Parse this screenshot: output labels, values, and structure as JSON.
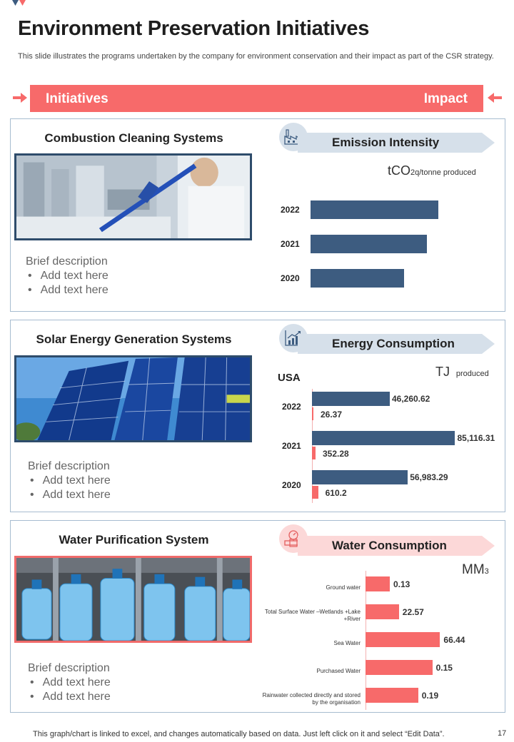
{
  "header": {
    "title": "Environment Preservation Initiatives",
    "subtitle": "This slide illustrates the programs undertaken by the company for  environment conservation and their impact as part of the CSR strategy."
  },
  "banner": {
    "left_label": "Initiatives",
    "right_label": "Impact"
  },
  "colors": {
    "accent": "#f76a6a",
    "navy": "#3d5c80",
    "border": "#a7bcd0",
    "tag_blue": "#d6e0ea",
    "tag_pink": "#fcd8d8"
  },
  "panels": [
    {
      "heading": "Combustion Cleaning Systems",
      "description_title": "Brief description",
      "bullets": [
        "Add text here",
        "Add text here"
      ],
      "tag_label": "Emission Intensity",
      "icon": "factory-icon",
      "unit_main": "tCO",
      "unit_sub": "2q/tonne  produced"
    },
    {
      "heading": "Solar Energy Generation Systems",
      "description_title": "Brief description",
      "bullets": [
        "Add text here",
        "Add text here"
      ],
      "tag_label": "Energy Consumption",
      "icon": "energy-graph-icon",
      "unit_main": "TJ",
      "unit_sub": "produced",
      "region": "USA"
    },
    {
      "heading": "Water Purification System",
      "description_title": "Brief description",
      "bullets": [
        "Add text here",
        "Add text here"
      ],
      "tag_label": "Water Consumption",
      "icon": "water-meter-icon",
      "unit_main": "MM",
      "unit_sub": "3"
    }
  ],
  "chart_data": [
    {
      "type": "bar",
      "orientation": "horizontal",
      "categories": [
        "2022",
        "2021",
        "2020"
      ],
      "values": [
        5.6,
        5.1,
        4.1
      ],
      "xlim": [
        0,
        8
      ]
    },
    {
      "type": "bar",
      "orientation": "horizontal",
      "categories": [
        "2022",
        "2021",
        "2020"
      ],
      "series": [
        {
          "values": [
            46260.62,
            85116.31,
            56983.29
          ],
          "labels": [
            "46,260.62",
            "85,116.31",
            "56,983.29"
          ],
          "color": "#3d5c80"
        },
        {
          "values": [
            26.37,
            352.28,
            610.2
          ],
          "labels": [
            "26.37",
            "352.28",
            "610.2"
          ],
          "color": "#f76a6a"
        }
      ],
      "xlim": [
        0,
        90000
      ]
    },
    {
      "type": "bar",
      "orientation": "horizontal",
      "categories": [
        "Ground water",
        "Total Surface Water –Wetlands +Lake +River",
        "Sea Water",
        "Purchased Water",
        "Rainwater collected directly and stored by the organisation"
      ],
      "values": [
        0.13,
        22.57,
        66.44,
        0.15,
        0.19
      ],
      "labels": [
        "0.13",
        "22.57",
        "66.44",
        "0.15",
        "0.19"
      ],
      "color": "#f76a6a"
    }
  ],
  "footer": {
    "note": "This graph/chart is linked to excel,  and changes automatically based on data. Just left click on it and select “Edit Data”.",
    "page_number": "17"
  }
}
